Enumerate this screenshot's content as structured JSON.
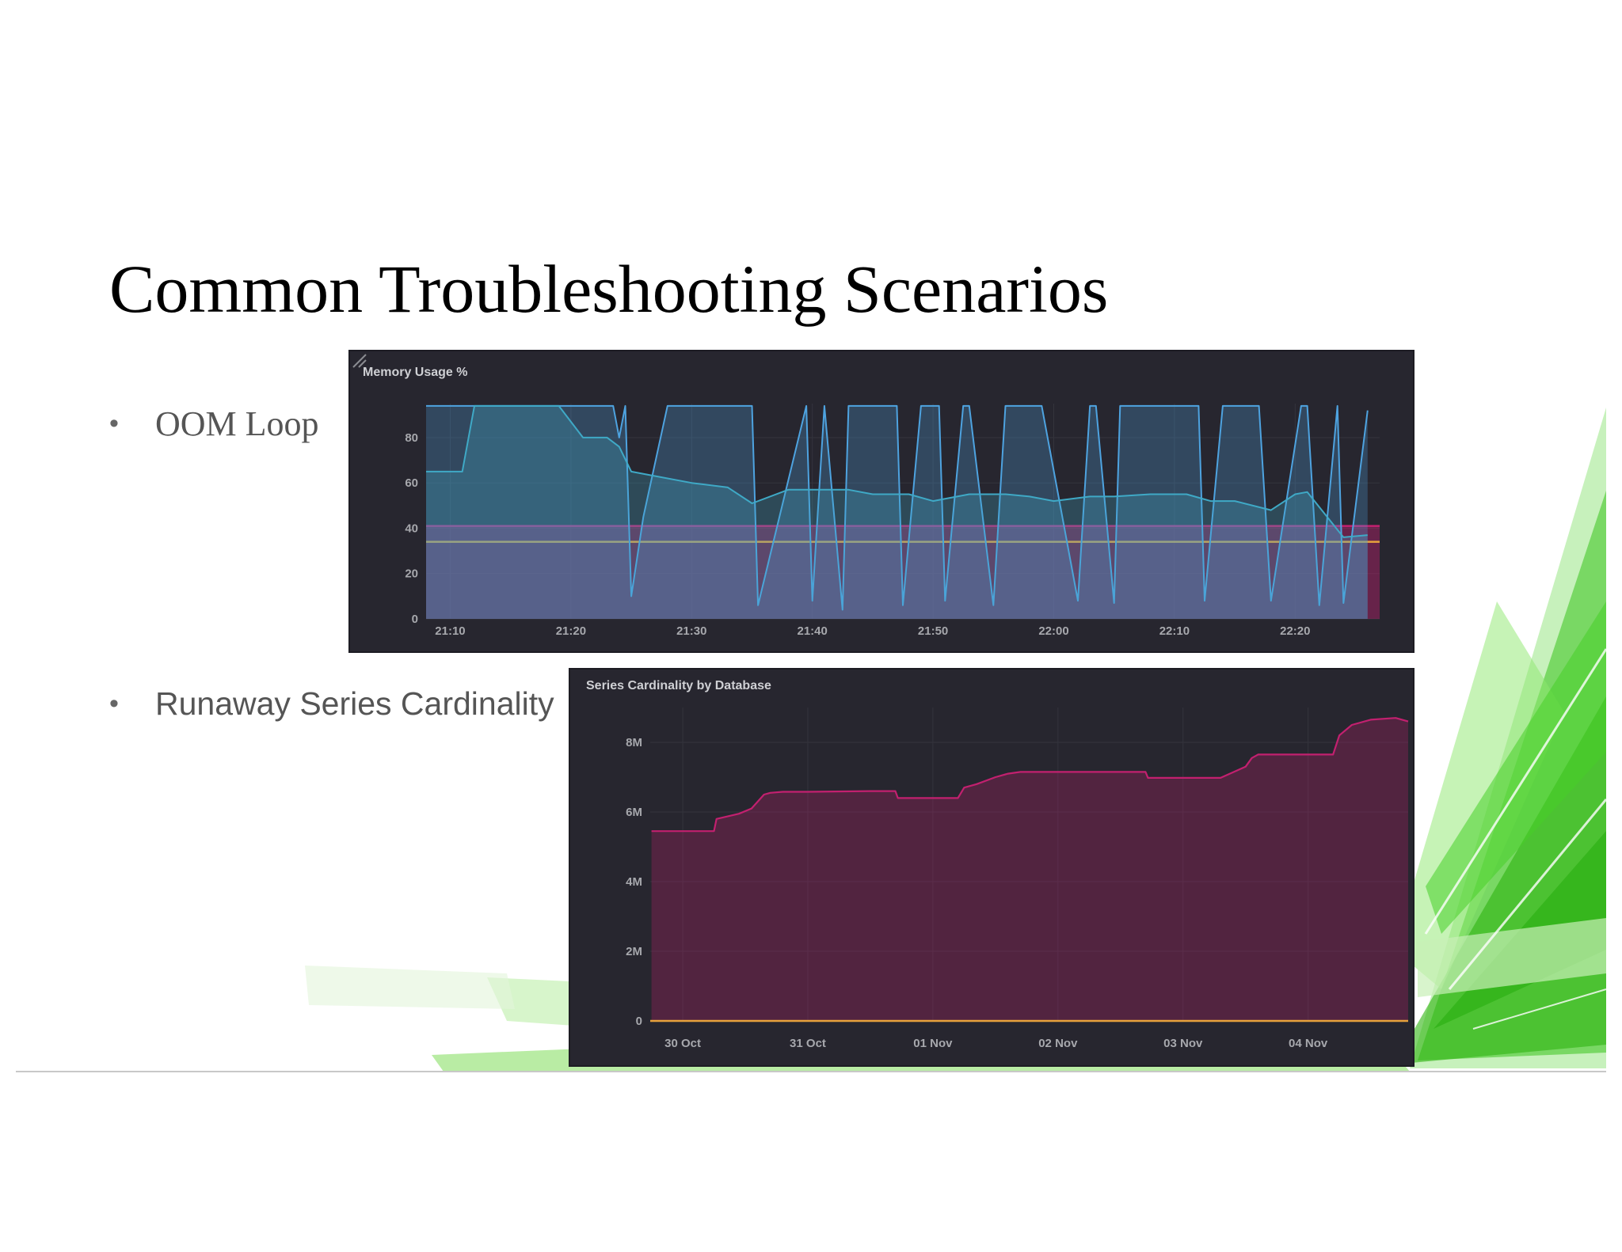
{
  "slide": {
    "title": "Common Troubleshooting Scenarios",
    "bullets": [
      {
        "marker": "•",
        "text": "OOM Loop"
      },
      {
        "marker": "•",
        "text": "Runaway Series Cardinality"
      }
    ]
  },
  "colors": {
    "panel_bg": "#27262f",
    "memory_blue": "#4ea3e0",
    "magenta": "#c2206f",
    "orange": "#e7a23c",
    "green_accent": "#3fcf2a"
  },
  "chart_data": [
    {
      "type": "area",
      "title": "Memory Usage %",
      "grid": true,
      "x_ticks": [
        "21:10",
        "21:20",
        "21:30",
        "21:40",
        "21:50",
        "22:00",
        "22:10",
        "22:20"
      ],
      "x_range_minutes": [
        -2,
        77
      ],
      "y_ticks": [
        0,
        20,
        40,
        60,
        80
      ],
      "ylim": [
        0,
        95
      ],
      "series": [
        {
          "color": "#4ea3e0",
          "x": [
            -2,
            1,
            2.5,
            8,
            10,
            12,
            12.5,
            13.5,
            14,
            14.5,
            15,
            16,
            18,
            22,
            25,
            25.5,
            29.5,
            30,
            31,
            32.5,
            33,
            37,
            37.5,
            39,
            40.5,
            41,
            42.5,
            43,
            45,
            46,
            49,
            52,
            53,
            53.5,
            55,
            55.5,
            59,
            62,
            62.5,
            64,
            67,
            68,
            70.5,
            71,
            72,
            73.5,
            74,
            76
          ],
          "y": [
            94,
            94,
            94,
            94,
            94,
            94,
            94,
            94,
            80,
            94,
            10,
            45,
            94,
            94,
            94,
            6,
            94,
            8,
            94,
            4,
            94,
            94,
            6,
            94,
            94,
            8,
            94,
            94,
            6,
            94,
            94,
            8,
            94,
            94,
            7,
            94,
            94,
            94,
            8,
            94,
            94,
            8,
            94,
            94,
            6,
            94,
            7,
            92
          ]
        },
        {
          "color": "#3fa9c6",
          "x": [
            -2,
            1,
            2,
            5,
            9,
            11,
            13,
            14,
            15,
            17,
            20,
            23,
            25,
            28,
            30,
            33,
            35,
            38,
            40,
            43,
            46,
            48,
            50,
            53,
            55,
            58,
            61,
            63,
            65,
            68,
            70,
            71,
            74,
            76
          ],
          "y": [
            65,
            65,
            94,
            94,
            94,
            80,
            80,
            76,
            65,
            63,
            60,
            58,
            51,
            57,
            57,
            57,
            55,
            55,
            52,
            55,
            55,
            54,
            52,
            54,
            54,
            55,
            55,
            52,
            52,
            48,
            55,
            56,
            36,
            37
          ]
        },
        {
          "name": "",
          "color": "#c2206f",
          "constant": 41
        },
        {
          "name": "",
          "color": "#e7a23c",
          "constant": 34
        }
      ]
    },
    {
      "type": "area",
      "title": "Series Cardinality by Database",
      "grid": true,
      "x_ticks": [
        "30 Oct",
        "31 Oct",
        "01 Nov",
        "02 Nov",
        "03 Nov",
        "04 Nov"
      ],
      "x_range_days": [
        -0.26,
        5.8
      ],
      "y_ticks": [
        "0",
        "2M",
        "4M",
        "6M",
        "8M"
      ],
      "ylim": [
        0,
        9000000
      ],
      "series": [
        {
          "color": "#c2206f",
          "x": [
            -0.25,
            0.0,
            0.25,
            0.27,
            0.45,
            0.55,
            0.65,
            0.7,
            0.8,
            1.0,
            1.5,
            1.7,
            1.72,
            2.0,
            2.2,
            2.25,
            2.35,
            2.5,
            2.6,
            2.7,
            2.9,
            3.0,
            3.5,
            3.7,
            3.72,
            4.0,
            4.3,
            4.5,
            4.55,
            4.6,
            5.0,
            5.2,
            5.25,
            5.35,
            5.5,
            5.7,
            5.8
          ],
          "y": [
            5450000,
            5450000,
            5450000,
            5800000,
            5950000,
            6100000,
            6500000,
            6550000,
            6580000,
            6580000,
            6600000,
            6600000,
            6400000,
            6400000,
            6400000,
            6700000,
            6800000,
            7000000,
            7100000,
            7150000,
            7150000,
            7150000,
            7150000,
            7150000,
            6980000,
            6980000,
            6980000,
            7300000,
            7550000,
            7650000,
            7650000,
            7650000,
            8200000,
            8500000,
            8650000,
            8700000,
            8600000
          ]
        },
        {
          "name": "",
          "color": "#e7a23c",
          "constant": 0
        }
      ]
    }
  ]
}
